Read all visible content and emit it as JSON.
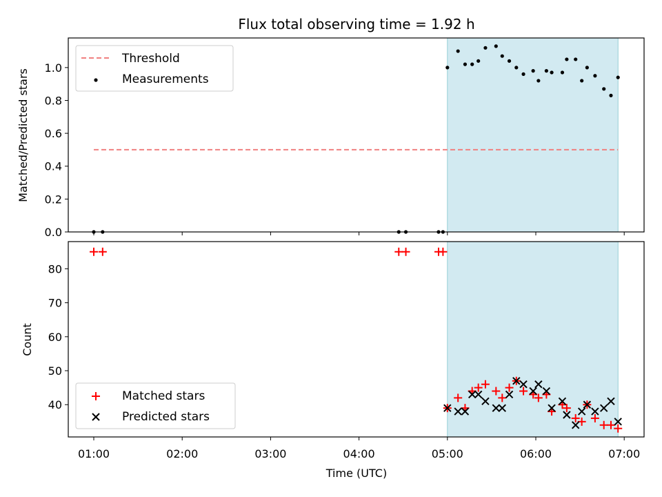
{
  "chart_data": {
    "title": "Flux total observing time = 1.92 h",
    "xlabel": "Time (UTC)",
    "x_ticks": [
      "01:00",
      "02:00",
      "03:00",
      "04:00",
      "05:00",
      "06:00",
      "07:00"
    ],
    "x_unit": "hours since 00:00 UTC",
    "shaded_span": [
      5.0,
      6.93
    ],
    "shade_color": "#add8e6",
    "panels": [
      {
        "type": "scatter",
        "ylabel": "Matched/Predicted stars",
        "ylim": [
          0,
          1.18
        ],
        "y_ticks": [
          "0.0",
          "0.2",
          "0.4",
          "0.6",
          "0.8",
          "1.0"
        ],
        "legend_position": "upper-left",
        "threshold": {
          "name": "Threshold",
          "value": 0.5,
          "x_range": [
            1.0,
            6.93
          ],
          "color": "#f08080"
        },
        "series": [
          {
            "name": "Measurements",
            "color": "#000000",
            "points": [
              [
                1.0,
                0.0
              ],
              [
                1.1,
                0.0
              ],
              [
                4.45,
                0.0
              ],
              [
                4.53,
                0.0
              ],
              [
                4.9,
                0.0
              ],
              [
                4.95,
                0.0
              ],
              [
                5.0,
                1.0
              ],
              [
                5.12,
                1.1
              ],
              [
                5.2,
                1.02
              ],
              [
                5.28,
                1.02
              ],
              [
                5.35,
                1.04
              ],
              [
                5.43,
                1.12
              ],
              [
                5.55,
                1.13
              ],
              [
                5.62,
                1.07
              ],
              [
                5.7,
                1.04
              ],
              [
                5.78,
                1.0
              ],
              [
                5.86,
                0.96
              ],
              [
                5.97,
                0.98
              ],
              [
                6.03,
                0.92
              ],
              [
                6.12,
                0.98
              ],
              [
                6.18,
                0.97
              ],
              [
                6.3,
                0.97
              ],
              [
                6.35,
                1.05
              ],
              [
                6.45,
                1.05
              ],
              [
                6.52,
                0.92
              ],
              [
                6.58,
                1.0
              ],
              [
                6.67,
                0.95
              ],
              [
                6.77,
                0.87
              ],
              [
                6.85,
                0.83
              ],
              [
                6.93,
                0.94
              ]
            ]
          }
        ]
      },
      {
        "type": "scatter",
        "ylabel": "Count",
        "ylim": [
          30.5,
          88
        ],
        "y_ticks": [
          "40",
          "50",
          "60",
          "70",
          "80"
        ],
        "legend_position": "lower-left",
        "series": [
          {
            "name": "Matched stars",
            "marker": "plus",
            "color": "#ff0000",
            "points": [
              [
                1.0,
                85
              ],
              [
                1.1,
                85
              ],
              [
                4.45,
                85
              ],
              [
                4.53,
                85
              ],
              [
                4.9,
                85
              ],
              [
                4.95,
                85
              ],
              [
                5.0,
                39
              ],
              [
                5.12,
                42
              ],
              [
                5.2,
                39
              ],
              [
                5.28,
                44
              ],
              [
                5.35,
                45
              ],
              [
                5.43,
                46
              ],
              [
                5.55,
                44
              ],
              [
                5.62,
                42
              ],
              [
                5.7,
                45
              ],
              [
                5.78,
                47
              ],
              [
                5.86,
                44
              ],
              [
                5.97,
                43
              ],
              [
                6.03,
                42
              ],
              [
                6.12,
                43
              ],
              [
                6.18,
                38
              ],
              [
                6.3,
                40
              ],
              [
                6.35,
                39
              ],
              [
                6.45,
                36
              ],
              [
                6.52,
                35
              ],
              [
                6.58,
                40
              ],
              [
                6.67,
                36
              ],
              [
                6.77,
                34
              ],
              [
                6.85,
                34
              ],
              [
                6.93,
                33
              ]
            ]
          },
          {
            "name": "Predicted stars",
            "marker": "x",
            "color": "#000000",
            "points": [
              [
                5.0,
                39
              ],
              [
                5.12,
                38
              ],
              [
                5.2,
                38
              ],
              [
                5.28,
                43
              ],
              [
                5.35,
                43
              ],
              [
                5.43,
                41
              ],
              [
                5.55,
                39
              ],
              [
                5.62,
                39
              ],
              [
                5.7,
                43
              ],
              [
                5.78,
                47
              ],
              [
                5.86,
                46
              ],
              [
                5.97,
                44
              ],
              [
                6.03,
                46
              ],
              [
                6.12,
                44
              ],
              [
                6.18,
                39
              ],
              [
                6.3,
                41
              ],
              [
                6.35,
                37
              ],
              [
                6.45,
                34
              ],
              [
                6.52,
                38
              ],
              [
                6.58,
                40
              ],
              [
                6.67,
                38
              ],
              [
                6.77,
                39
              ],
              [
                6.85,
                41
              ],
              [
                6.93,
                35
              ]
            ]
          }
        ]
      }
    ]
  }
}
